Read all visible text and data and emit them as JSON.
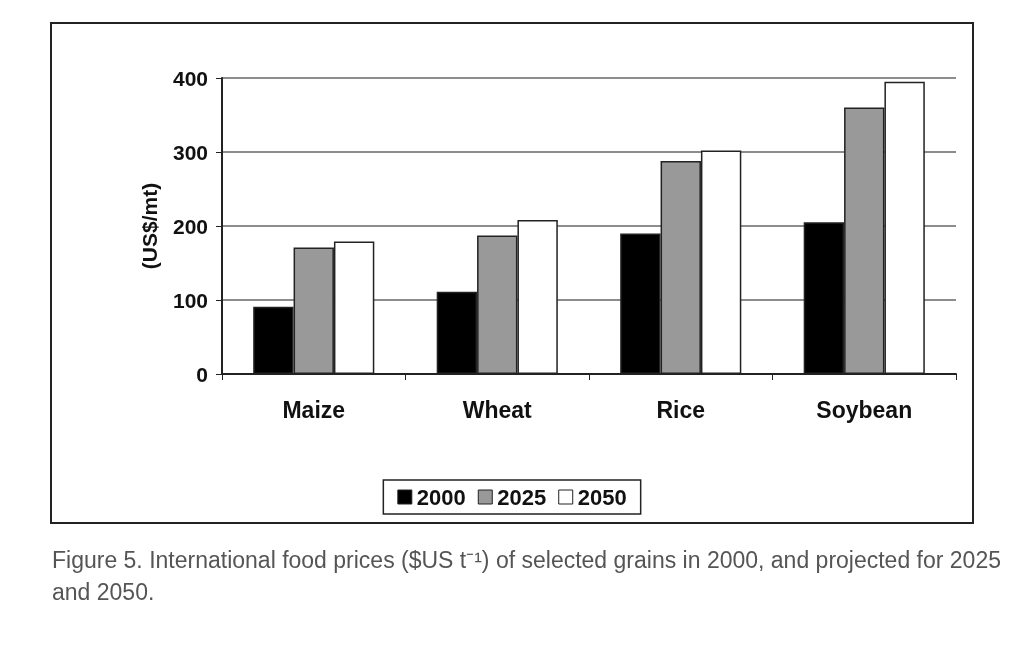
{
  "chart_data": {
    "type": "bar",
    "ylabel": "(US$/mt)",
    "categories": [
      "Maize",
      "Wheat",
      "Rice",
      "Soybean"
    ],
    "series": [
      {
        "name": "2000",
        "color": "#000000",
        "values": [
          91,
          111,
          190,
          205
        ]
      },
      {
        "name": "2025",
        "color": "#999999",
        "values": [
          171,
          187,
          288,
          360
        ]
      },
      {
        "name": "2050",
        "color": "#ffffff",
        "values": [
          179,
          208,
          302,
          395
        ]
      }
    ],
    "ylim": [
      0,
      400
    ],
    "yticks": [
      0,
      100,
      200,
      300,
      400
    ],
    "grid": "y",
    "legend": "bottom",
    "annotations": [
      "Figure 5. International food prices ($US t⁻¹) of selected grains in 2000, and projected for 2025 and 2050."
    ]
  }
}
